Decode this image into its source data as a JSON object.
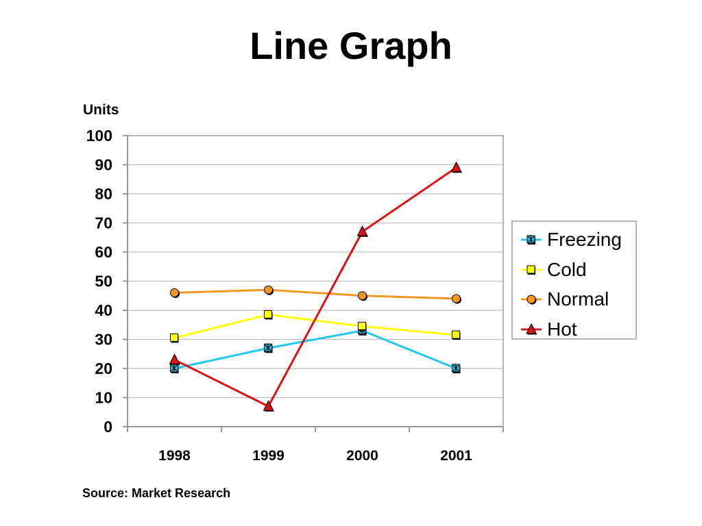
{
  "page": {
    "title": "Line Graph",
    "units_label": "Units",
    "source": "Source: Market Research"
  },
  "chart_data": {
    "type": "line",
    "title": "Line Graph",
    "xlabel": "",
    "ylabel": "Units",
    "categories": [
      "1998",
      "1999",
      "2000",
      "2001"
    ],
    "ylim": [
      0,
      100
    ],
    "yticks": [
      0,
      10,
      20,
      30,
      40,
      50,
      60,
      70,
      80,
      90,
      100
    ],
    "grid": true,
    "legend_position": "right",
    "series": [
      {
        "name": "Freezing",
        "values": [
          20,
          27,
          33,
          20
        ],
        "color": "#1ec8f0",
        "marker": "x-square"
      },
      {
        "name": "Cold",
        "values": [
          30.5,
          38.5,
          34.5,
          31.5
        ],
        "color": "#ffff00",
        "marker": "square"
      },
      {
        "name": "Normal",
        "values": [
          46,
          47,
          45,
          44
        ],
        "color": "#f5961e",
        "marker": "circle"
      },
      {
        "name": "Hot",
        "values": [
          23,
          7,
          67,
          89
        ],
        "color": "#e01010",
        "marker": "triangle"
      }
    ]
  }
}
